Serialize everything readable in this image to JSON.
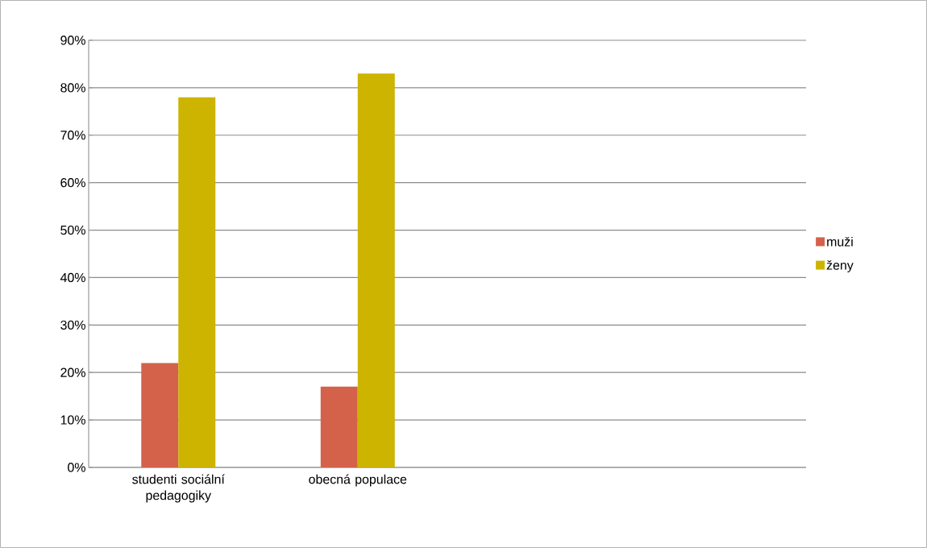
{
  "chart_data": {
    "type": "bar",
    "categories": [
      "studenti sociální pedagogiky",
      "obecná populace",
      null,
      null
    ],
    "series": [
      {
        "name": "muži",
        "color": "#d4624b",
        "values": [
          22,
          17,
          null,
          null
        ]
      },
      {
        "name": "ženy",
        "color": "#ccb400",
        "values": [
          78,
          83,
          null,
          null
        ]
      }
    ],
    "ylim": [
      0,
      90
    ],
    "yticks": [
      {
        "value": 0,
        "label": "0%"
      },
      {
        "value": 10,
        "label": "10%"
      },
      {
        "value": 20,
        "label": "20%"
      },
      {
        "value": 30,
        "label": "30%"
      },
      {
        "value": 40,
        "label": "40%"
      },
      {
        "value": 50,
        "label": "50%"
      },
      {
        "value": 60,
        "label": "60%"
      },
      {
        "value": 70,
        "label": "70%"
      },
      {
        "value": 80,
        "label": "80%"
      },
      {
        "value": 90,
        "label": "90%"
      }
    ],
    "grid": "y",
    "legend": "right"
  }
}
